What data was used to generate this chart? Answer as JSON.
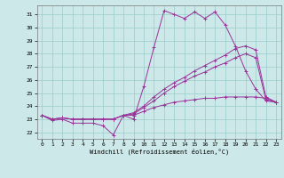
{
  "xlabel": "Windchill (Refroidissement éolien,°C)",
  "bg_color": "#cce8e8",
  "line_color": "#993399",
  "grid_color": "#99cccc",
  "xlim": [
    -0.5,
    23.5
  ],
  "ylim": [
    21.5,
    31.7
  ],
  "yticks": [
    22,
    23,
    24,
    25,
    26,
    27,
    28,
    29,
    30,
    31
  ],
  "xticks": [
    0,
    1,
    2,
    3,
    4,
    5,
    6,
    7,
    8,
    9,
    10,
    11,
    12,
    13,
    14,
    15,
    16,
    17,
    18,
    19,
    20,
    21,
    22,
    23
  ],
  "series": [
    [
      23.3,
      22.9,
      23.0,
      22.7,
      22.7,
      22.7,
      22.5,
      21.8,
      23.3,
      23.0,
      25.5,
      28.5,
      31.3,
      31.0,
      30.7,
      31.2,
      30.7,
      31.2,
      30.2,
      28.6,
      26.7,
      25.3,
      24.4,
      24.3
    ],
    [
      23.3,
      23.0,
      23.1,
      23.0,
      23.0,
      23.0,
      23.0,
      23.0,
      23.3,
      23.5,
      24.0,
      24.7,
      25.3,
      25.8,
      26.2,
      26.7,
      27.1,
      27.5,
      27.9,
      28.4,
      28.6,
      28.3,
      24.7,
      24.3
    ],
    [
      23.3,
      23.0,
      23.1,
      23.0,
      23.0,
      23.0,
      23.0,
      23.0,
      23.3,
      23.4,
      23.9,
      24.4,
      25.0,
      25.5,
      25.9,
      26.3,
      26.6,
      27.0,
      27.3,
      27.7,
      28.0,
      27.7,
      24.5,
      24.3
    ],
    [
      23.3,
      23.0,
      23.1,
      23.0,
      23.0,
      23.0,
      23.0,
      23.0,
      23.3,
      23.3,
      23.6,
      23.9,
      24.1,
      24.3,
      24.4,
      24.5,
      24.6,
      24.6,
      24.7,
      24.7,
      24.7,
      24.7,
      24.6,
      24.3
    ]
  ]
}
